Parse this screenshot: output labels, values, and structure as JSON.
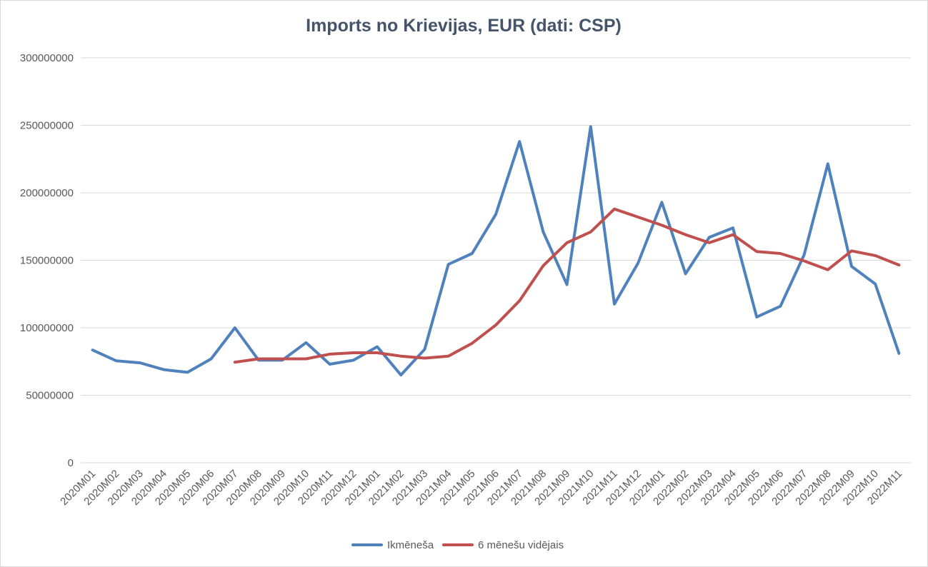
{
  "chart_data": {
    "type": "line",
    "title": "Imports no Krievijas, EUR (dati: CSP)",
    "xlabel": "",
    "ylabel": "",
    "ylim": [
      0,
      300000000
    ],
    "ytick_values": [
      0,
      50000000,
      100000000,
      150000000,
      200000000,
      250000000,
      300000000
    ],
    "ytick_labels": [
      "0",
      "50000000",
      "100000000",
      "150000000",
      "200000000",
      "250000000",
      "300000000"
    ],
    "grid": true,
    "legend_position": "bottom",
    "categories": [
      "2020M01",
      "2020M02",
      "2020M03",
      "2020M04",
      "2020M05",
      "2020M06",
      "2020M07",
      "2020M08",
      "2020M09",
      "2020M10",
      "2020M11",
      "2020M12",
      "2021M01",
      "2021M02",
      "2021M03",
      "2021M04",
      "2021M05",
      "2021M06",
      "2021M07",
      "2021M08",
      "2021M09",
      "2021M10",
      "2021M11",
      "2021M12",
      "2022M01",
      "2022M02",
      "2022M03",
      "2022M04",
      "2022M05",
      "2022M06",
      "2022M07",
      "2022M08",
      "2022M09",
      "2022M10",
      "2022M11"
    ],
    "series": [
      {
        "name": "Ikmēneša",
        "color": "#4f81bd",
        "values": [
          83500000,
          75500000,
          74000000,
          69000000,
          67000000,
          77000000,
          100000000,
          76000000,
          76000000,
          89000000,
          73000000,
          76000000,
          86000000,
          65000000,
          84000000,
          147000000,
          155000000,
          184000000,
          238000000,
          171000000,
          132000000,
          249000000,
          117500000,
          148000000,
          193000000,
          140000000,
          167000000,
          174000000,
          108000000,
          116000000,
          154000000,
          221500000,
          145500000,
          132500000,
          81000000
        ]
      },
      {
        "name": "6 mēnešu vidējais",
        "color": "#c0504d",
        "values": [
          null,
          null,
          null,
          null,
          null,
          null,
          74500000,
          77000000,
          77000000,
          77000000,
          80500000,
          81500000,
          81500000,
          79000000,
          77500000,
          79000000,
          88500000,
          102000000,
          120000000,
          146000000,
          163000000,
          171000000,
          188000000,
          182000000,
          176000000,
          169000000,
          163000000,
          169000000,
          156500000,
          155000000,
          149500000,
          143000000,
          157000000,
          153500000,
          146500000
        ]
      }
    ]
  }
}
